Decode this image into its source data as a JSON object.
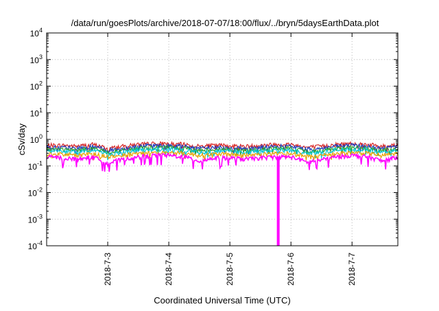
{
  "chart_data": {
    "type": "line",
    "title": "/data/run/goesPlots/archive/2018-07-07/18:00/flux/../bryn/5daysEarthData.plot",
    "xlabel": "Coordinated Universal Time (UTC)",
    "ylabel": "cSv/day",
    "yscale": "log",
    "ylim": [
      0.0001,
      10000
    ],
    "xlim": [
      "2018-07-02 00:00",
      "2018-07-07 18:00"
    ],
    "grid": true,
    "legend": "none",
    "x_ticks": [
      "2018-7-3",
      "2018-7-4",
      "2018-7-5",
      "2018-7-6",
      "2018-7-7"
    ],
    "y_ticks": [
      {
        "base": "10",
        "exp": "-4",
        "value": 0.0001
      },
      {
        "base": "10",
        "exp": "-3",
        "value": 0.001
      },
      {
        "base": "10",
        "exp": "-2",
        "value": 0.01
      },
      {
        "base": "10",
        "exp": "-1",
        "value": 0.1
      },
      {
        "base": "10",
        "exp": "0",
        "value": 1
      },
      {
        "base": "10",
        "exp": "1",
        "value": 10
      },
      {
        "base": "10",
        "exp": "2",
        "value": 100
      },
      {
        "base": "10",
        "exp": "3",
        "value": 1000
      },
      {
        "base": "10",
        "exp": "4",
        "value": 10000
      }
    ],
    "x": [
      "2018-07-02 00:00",
      "2018-07-02 06:00",
      "2018-07-02 12:00",
      "2018-07-02 18:00",
      "2018-07-03 00:00",
      "2018-07-03 06:00",
      "2018-07-03 12:00",
      "2018-07-03 18:00",
      "2018-07-04 00:00",
      "2018-07-04 06:00",
      "2018-07-04 12:00",
      "2018-07-04 18:00",
      "2018-07-05 00:00",
      "2018-07-05 06:00",
      "2018-07-05 12:00",
      "2018-07-05 18:00",
      "2018-07-06 00:00",
      "2018-07-06 06:00",
      "2018-07-06 12:00",
      "2018-07-06 18:00",
      "2018-07-07 00:00",
      "2018-07-07 06:00",
      "2018-07-07 12:00",
      "2018-07-07 18:00"
    ],
    "series": [
      {
        "color": "#d62728",
        "values": [
          0.6,
          0.6,
          0.55,
          0.65,
          0.45,
          0.55,
          0.65,
          0.7,
          0.7,
          0.65,
          0.55,
          0.6,
          0.6,
          0.55,
          0.6,
          0.65,
          0.65,
          0.5,
          0.55,
          0.65,
          0.7,
          0.65,
          0.55,
          0.65
        ]
      },
      {
        "color": "#1f3fbf",
        "values": [
          0.5,
          0.5,
          0.45,
          0.55,
          0.38,
          0.45,
          0.55,
          0.6,
          0.6,
          0.55,
          0.45,
          0.5,
          0.5,
          0.45,
          0.5,
          0.55,
          0.55,
          0.42,
          0.45,
          0.55,
          0.6,
          0.55,
          0.45,
          0.55
        ]
      },
      {
        "color": "#2ca02c",
        "values": [
          0.42,
          0.42,
          0.38,
          0.46,
          0.32,
          0.38,
          0.46,
          0.5,
          0.5,
          0.46,
          0.38,
          0.42,
          0.42,
          0.38,
          0.42,
          0.46,
          0.46,
          0.35,
          0.38,
          0.46,
          0.5,
          0.46,
          0.38,
          0.46
        ]
      },
      {
        "color": "#00c8d8",
        "values": [
          0.36,
          0.36,
          0.32,
          0.4,
          0.28,
          0.32,
          0.4,
          0.42,
          0.42,
          0.4,
          0.32,
          0.36,
          0.36,
          0.32,
          0.36,
          0.4,
          0.4,
          0.3,
          0.32,
          0.4,
          0.42,
          0.4,
          0.32,
          0.4
        ]
      },
      {
        "color": "#e8a000",
        "values": [
          0.28,
          0.28,
          0.25,
          0.3,
          0.22,
          0.25,
          0.3,
          0.32,
          0.32,
          0.3,
          0.25,
          0.28,
          0.28,
          0.25,
          0.28,
          0.3,
          0.3,
          0.23,
          0.25,
          0.3,
          0.32,
          0.3,
          0.25,
          0.3
        ]
      },
      {
        "color": "#ff00ff",
        "values": [
          0.22,
          0.2,
          0.18,
          0.22,
          0.12,
          0.18,
          0.22,
          0.25,
          0.25,
          0.22,
          0.15,
          0.2,
          0.2,
          0.18,
          0.2,
          0.22,
          0.22,
          0.14,
          0.17,
          0.22,
          0.25,
          0.22,
          0.15,
          0.22
        ]
      }
    ],
    "annotations": [
      {
        "series": 5,
        "x": "2018-07-05 19:00",
        "y": 0.0001,
        "text": ""
      }
    ]
  }
}
